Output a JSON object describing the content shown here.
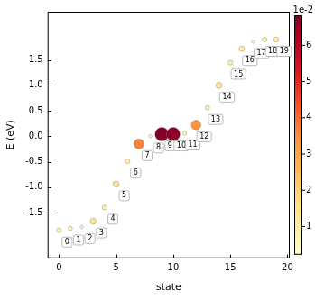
{
  "chart_data": {
    "type": "scatter",
    "x_label": "state",
    "y_label": "E (eV)",
    "x": [
      0,
      1,
      2,
      3,
      4,
      5,
      6,
      7,
      8,
      9,
      10,
      11,
      12,
      13,
      14,
      15,
      16,
      17,
      18,
      19
    ],
    "values": [
      -1.85,
      -1.81,
      -1.78,
      -1.67,
      -1.4,
      -0.94,
      -0.49,
      -0.15,
      0.0,
      0.04,
      0.04,
      0.06,
      0.22,
      0.56,
      1.0,
      1.45,
      1.72,
      1.86,
      1.9,
      1.9
    ],
    "point_labels": [
      0,
      1,
      2,
      3,
      4,
      5,
      6,
      7,
      8,
      9,
      10,
      11,
      12,
      13,
      14,
      15,
      16,
      17,
      18,
      19
    ],
    "color_values": [
      0.8,
      0.6,
      0.4,
      1.3,
      0.9,
      1.3,
      0.9,
      3.7,
      0.4,
      6.8,
      6.7,
      0.7,
      3.4,
      0.7,
      1.3,
      0.9,
      1.1,
      0.4,
      0.8,
      0.9
    ],
    "colorbar": {
      "label": "1e-2",
      "range": [
        0.22,
        6.83
      ],
      "ticks": [
        1,
        2,
        3,
        4,
        5,
        6
      ]
    },
    "xlim": [
      -1,
      20.2
    ],
    "xticks": [
      0,
      5,
      10,
      15,
      20
    ],
    "ylim": [
      -2.4,
      2.45
    ],
    "yticks": [
      {
        "value": -1.5,
        "label": "-1.5"
      },
      {
        "value": -1.0,
        "label": "-1.0"
      },
      {
        "value": -0.5,
        "label": "-0.5"
      },
      {
        "value": 0.0,
        "label": "0.0"
      },
      {
        "value": 0.5,
        "label": "0.5"
      },
      {
        "value": 1.0,
        "label": "1.0"
      },
      {
        "value": 1.5,
        "label": "1.5"
      }
    ],
    "grid": false
  }
}
